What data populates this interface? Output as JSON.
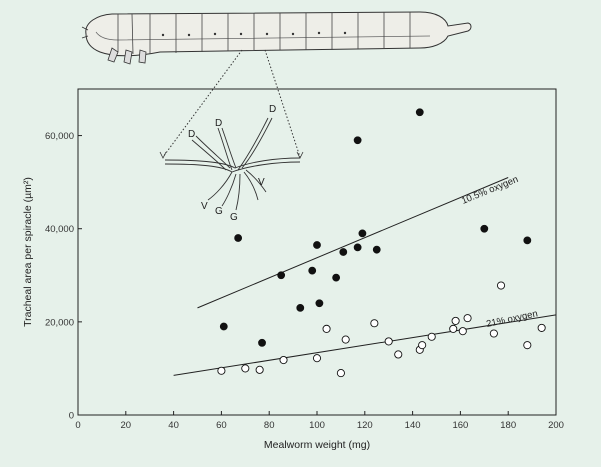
{
  "chart_data": {
    "type": "scatter",
    "xlabel": "Mealworm weight (mg)",
    "ylabel": "Tracheal area per spiracle (µm²)",
    "xlim": [
      0,
      200
    ],
    "ylim": [
      0,
      70000
    ],
    "x_ticks": [
      "0",
      "20",
      "40",
      "60",
      "80",
      "100",
      "120",
      "140",
      "160",
      "180",
      "200"
    ],
    "y_ticks": [
      "0",
      "20,000",
      "40,000",
      "60,000"
    ],
    "grid": false,
    "series": [
      {
        "name": "10.5% oxygen",
        "marker": "filled-circle",
        "color": "#111111",
        "points": [
          [
            61,
            19000
          ],
          [
            67,
            38000
          ],
          [
            77,
            15500
          ],
          [
            85,
            30000
          ],
          [
            93,
            23000
          ],
          [
            98,
            31000
          ],
          [
            100,
            36500
          ],
          [
            101,
            24000
          ],
          [
            108,
            29500
          ],
          [
            111,
            35000
          ],
          [
            117,
            36000
          ],
          [
            117,
            59000
          ],
          [
            119,
            39000
          ],
          [
            125,
            35500
          ],
          [
            143,
            65000
          ],
          [
            170,
            40000
          ],
          [
            188,
            37500
          ]
        ],
        "trend": [
          [
            50,
            23000
          ],
          [
            180,
            51000
          ]
        ]
      },
      {
        "name": "21% oxygen",
        "marker": "open-circle",
        "color": "#111111",
        "points": [
          [
            60,
            9500
          ],
          [
            70,
            10000
          ],
          [
            76,
            9700
          ],
          [
            86,
            11800
          ],
          [
            100,
            12200
          ],
          [
            104,
            18500
          ],
          [
            110,
            9000
          ],
          [
            112,
            16200
          ],
          [
            124,
            19700
          ],
          [
            130,
            15800
          ],
          [
            134,
            13000
          ],
          [
            143,
            14000
          ],
          [
            144,
            15000
          ],
          [
            148,
            16800
          ],
          [
            157,
            18500
          ],
          [
            158,
            20200
          ],
          [
            161,
            18000
          ],
          [
            163,
            20800
          ],
          [
            174,
            17500
          ],
          [
            177,
            27800
          ],
          [
            188,
            15000
          ],
          [
            194,
            18700
          ]
        ],
        "trend": [
          [
            40,
            8500
          ],
          [
            200,
            21500
          ]
        ]
      }
    ],
    "annotations": [
      "10.5% oxygen",
      "21% oxygen"
    ],
    "inset_labels": [
      "D",
      "D",
      "D",
      "V",
      "G",
      "G",
      "V"
    ]
  }
}
